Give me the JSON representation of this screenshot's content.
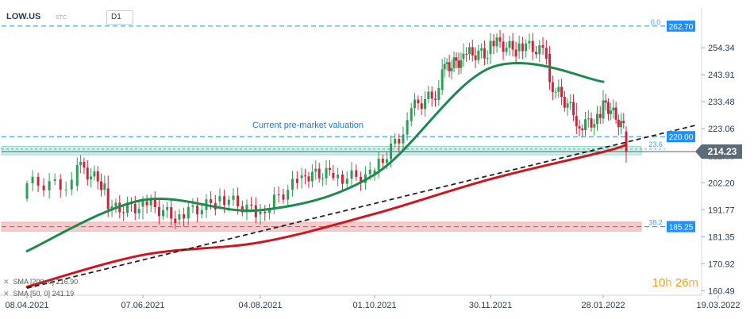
{
  "header": {
    "symbol": "LOW.US",
    "sub": "STC",
    "timeframe": "D1"
  },
  "timer": {
    "hours": "10",
    "h_unit": "h",
    "minutes": "26",
    "m_unit": "m"
  },
  "indicators": [
    {
      "label": "SMA [200, 0]",
      "value": "216.90"
    },
    {
      "label": "SMA [50, 0]",
      "value": "241.19"
    }
  ],
  "colors": {
    "up": "#2e9d57",
    "down": "#d0223a",
    "sma200": "#d0151f",
    "sma50": "#1c8a4c",
    "level_line": "#1e90d8",
    "label_bg": "#1e90ff",
    "price_label_bg": "#5b6b78",
    "green_zone": "#a8ead8",
    "red_zone": "#f7c0c0"
  },
  "chart_data": {
    "type": "candlestick",
    "title": "",
    "x_ticks": [
      "08.04.2021",
      "07.06.2021",
      "04.08.2021",
      "01.10.2021",
      "30.11.2021",
      "28.01.2022",
      "19.03.2022"
    ],
    "y_ticks": [
      160.49,
      170.92,
      181.35,
      191.77,
      202.2,
      212.63,
      223.06,
      233.48,
      243.91,
      254.34
    ],
    "ylim": [
      158.0,
      266.0
    ],
    "current_price": "214.23",
    "levels": [
      {
        "value": 262.7,
        "label": "262.70",
        "fib": "0.0"
      },
      {
        "value": 220.0,
        "label": "220.00"
      },
      {
        "value": 185.25,
        "label": "185.25",
        "fib": "38.2"
      }
    ],
    "fib_labels": [
      "0.0",
      "23.6",
      "38.2"
    ],
    "fib_23_6_value": 215.2,
    "zones": [
      {
        "name": "support-zone-green",
        "from": 213.0,
        "to": 216.3
      },
      {
        "name": "support-zone-red",
        "from": 183.5,
        "to": 187.0
      }
    ],
    "annotation": "Current pre-market valuation",
    "trendline": {
      "from": [
        "08.04.2021",
        161.5
      ],
      "to": [
        "19.03.2022",
        224.5
      ]
    },
    "series": [
      {
        "name": "SMA [200, 0]",
        "points": [
          [
            "08.04.2021",
            162.0
          ],
          [
            "07.06.2021",
            174.3
          ],
          [
            "04.08.2021",
            179.2
          ],
          [
            "01.10.2021",
            190.2
          ],
          [
            "30.11.2021",
            203.6
          ],
          [
            "28.01.2022",
            214.1
          ],
          [
            "07.02.2022",
            216.9
          ]
        ]
      },
      {
        "name": "SMA [50, 0]",
        "points": [
          [
            "08.04.2021",
            175.8
          ],
          [
            "07.06.2021",
            195.5
          ],
          [
            "04.08.2021",
            191.6
          ],
          [
            "01.10.2021",
            205.4
          ],
          [
            "30.11.2021",
            246.6
          ],
          [
            "28.01.2022",
            241.2
          ]
        ]
      }
    ],
    "candles": [
      {
        "date": "08.04.2021",
        "o": 196,
        "h": 203,
        "l": 195,
        "c": 202
      },
      {
        "date": "04.05.2021",
        "o": 201,
        "h": 212,
        "l": 199,
        "c": 209
      },
      {
        "date": "20.05.2021",
        "o": 200,
        "h": 205,
        "l": 189,
        "c": 192
      },
      {
        "date": "07.06.2021",
        "o": 193,
        "h": 197,
        "l": 188,
        "c": 195
      },
      {
        "date": "25.06.2021",
        "o": 188,
        "h": 192,
        "l": 186,
        "c": 190
      },
      {
        "date": "15.07.2021",
        "o": 195,
        "h": 200,
        "l": 192,
        "c": 197
      },
      {
        "date": "04.08.2021",
        "o": 190,
        "h": 194,
        "l": 186,
        "c": 191
      },
      {
        "date": "25.08.2021",
        "o": 204,
        "h": 208,
        "l": 200,
        "c": 205
      },
      {
        "date": "10.09.2021",
        "o": 206,
        "h": 209,
        "l": 203,
        "c": 204
      },
      {
        "date": "01.10.2021",
        "o": 205,
        "h": 208,
        "l": 203,
        "c": 207
      },
      {
        "date": "20.10.2021",
        "o": 226,
        "h": 233,
        "l": 224,
        "c": 231
      },
      {
        "date": "05.11.2021",
        "o": 238,
        "h": 250,
        "l": 236,
        "c": 246
      },
      {
        "date": "16.11.2021",
        "o": 250,
        "h": 256,
        "l": 247,
        "c": 252
      },
      {
        "date": "30.11.2021",
        "o": 252,
        "h": 260,
        "l": 248,
        "c": 257
      },
      {
        "date": "15.12.2021",
        "o": 253,
        "h": 259,
        "l": 250,
        "c": 256
      },
      {
        "date": "31.12.2021",
        "o": 252,
        "h": 255,
        "l": 238,
        "c": 241
      },
      {
        "date": "14.01.2022",
        "o": 228,
        "h": 233,
        "l": 221,
        "c": 224
      },
      {
        "date": "28.01.2022",
        "o": 227,
        "h": 238,
        "l": 225,
        "c": 234
      },
      {
        "date": "07.02.2022",
        "o": 222,
        "h": 224,
        "l": 210,
        "c": 214.23
      }
    ]
  }
}
